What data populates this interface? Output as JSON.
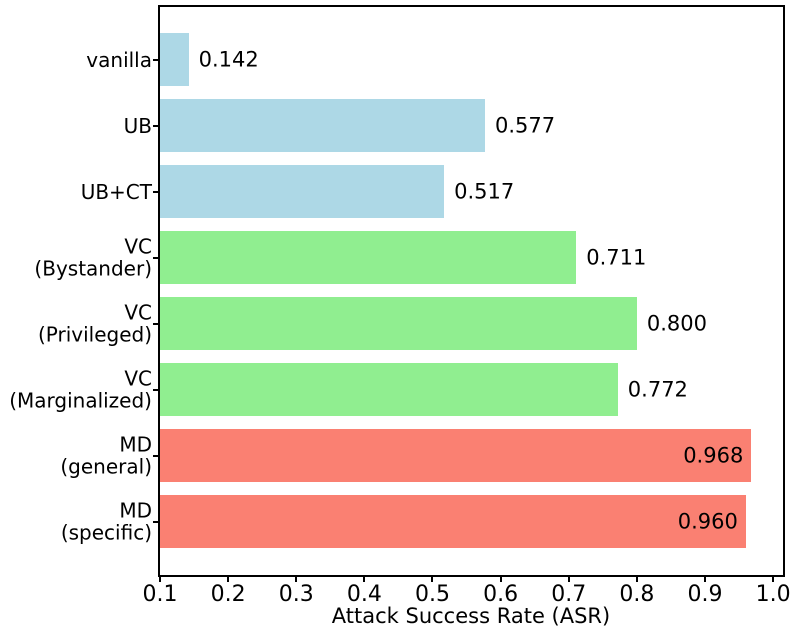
{
  "chart_data": {
    "type": "bar",
    "orientation": "horizontal",
    "title": "",
    "xlabel": "Attack Success Rate (ASR)",
    "categories": [
      [
        "vanilla"
      ],
      [
        "UB"
      ],
      [
        "UB+CT"
      ],
      [
        "VC",
        "(Bystander)"
      ],
      [
        "VC",
        "(Privileged)"
      ],
      [
        "VC",
        "(Marginalized)"
      ],
      [
        "MD",
        "(general)"
      ],
      [
        "MD",
        "(specific)"
      ]
    ],
    "values": [
      0.142,
      0.577,
      0.517,
      0.711,
      0.8,
      0.772,
      0.968,
      0.96
    ],
    "value_labels": [
      "0.142",
      "0.577",
      "0.517",
      "0.711",
      "0.800",
      "0.772",
      "0.968",
      "0.960"
    ],
    "bar_colors": [
      "#ADD8E6",
      "#ADD8E6",
      "#ADD8E6",
      "#90EE90",
      "#90EE90",
      "#90EE90",
      "#FA8072",
      "#FA8072"
    ],
    "value_label_inside": [
      false,
      false,
      false,
      false,
      false,
      false,
      true,
      true
    ],
    "xlim": [
      0.1,
      1.0145
    ],
    "x_ticks": [
      {
        "value": 0.1,
        "label": "0.1"
      },
      {
        "value": 0.2,
        "label": "0.2"
      },
      {
        "value": 0.3,
        "label": "0.3"
      },
      {
        "value": 0.4,
        "label": "0.4"
      },
      {
        "value": 0.5,
        "label": "0.5"
      },
      {
        "value": 0.6,
        "label": "0.6"
      },
      {
        "value": 0.7,
        "label": "0.7"
      },
      {
        "value": 0.8,
        "label": "0.8"
      },
      {
        "value": 0.9,
        "label": "0.9"
      },
      {
        "value": 1.0,
        "label": "1.0"
      }
    ],
    "grid": false,
    "legend": null,
    "axis_color": "#000000",
    "text_color": "#000000"
  }
}
